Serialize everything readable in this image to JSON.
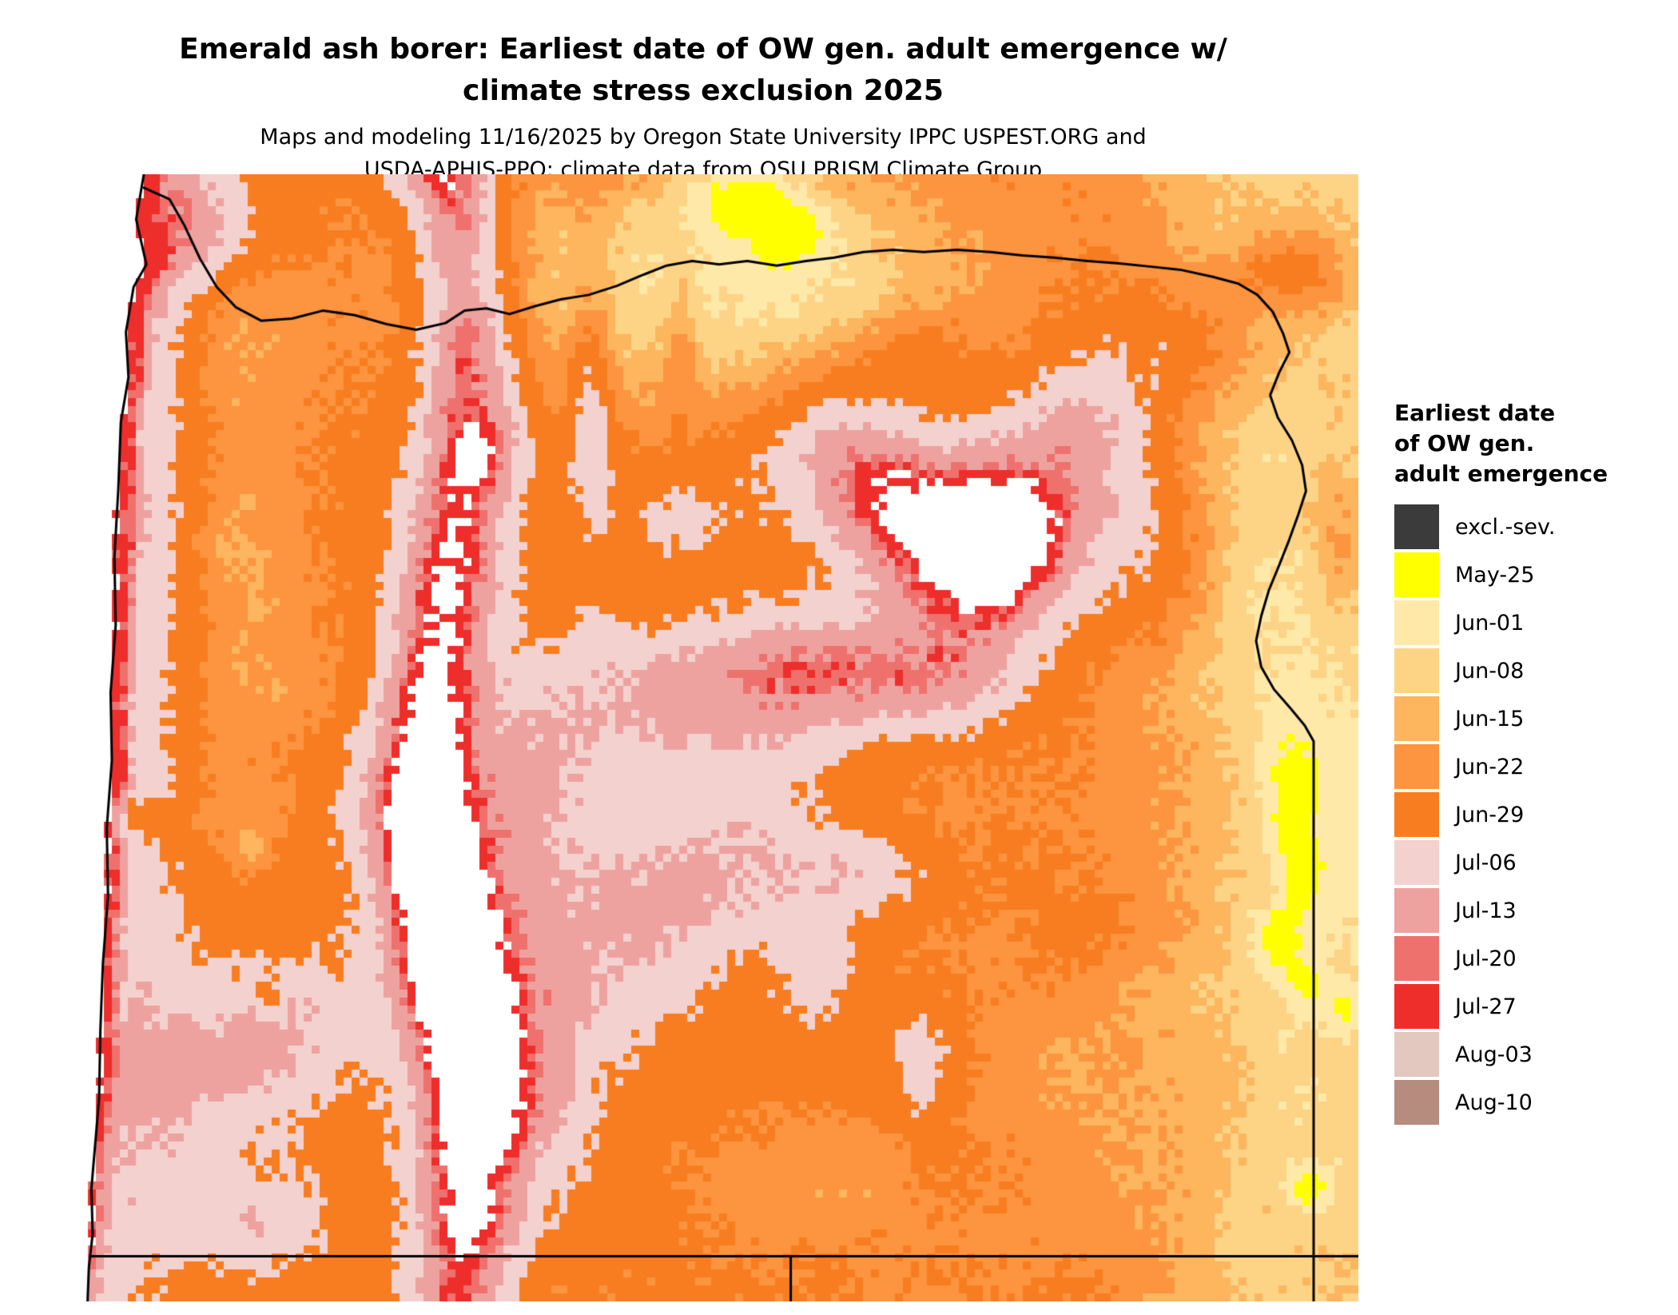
{
  "title": {
    "line1": "Emerald ash borer: Earliest date of OW gen. adult emergence w/",
    "line2": "climate stress exclusion 2025"
  },
  "subtitle": {
    "line1": "Maps and modeling 11/16/2025 by Oregon State University IPPC USPEST.ORG and",
    "line2": "USDA-APHIS-PPQ; climate data from OSU PRISM Climate Group"
  },
  "map": {
    "region": "Oregon",
    "na_color": "#ffffff",
    "border_color": "#000000",
    "ocean_color": "#ffffff"
  },
  "legend": {
    "title_lines": [
      "Earliest date",
      "of OW gen.",
      "adult emergence"
    ],
    "items": [
      {
        "label": "excl.-sev.",
        "color": "#3b3b3b"
      },
      {
        "label": "May-25",
        "color": "#ffff00"
      },
      {
        "label": "Jun-01",
        "color": "#fee9a9"
      },
      {
        "label": "Jun-08",
        "color": "#fdd486"
      },
      {
        "label": "Jun-15",
        "color": "#fdb55e"
      },
      {
        "label": "Jun-22",
        "color": "#fc9440"
      },
      {
        "label": "Jun-29",
        "color": "#f87d21"
      },
      {
        "label": "Jul-06",
        "color": "#f3d1ce"
      },
      {
        "label": "Jul-13",
        "color": "#eea2a0"
      },
      {
        "label": "Jul-20",
        "color": "#ef716e"
      },
      {
        "label": "Jul-27",
        "color": "#ee2e2b"
      },
      {
        "label": "Aug-03",
        "color": "#e2c8bf"
      },
      {
        "label": "Aug-10",
        "color": "#b58c7e"
      }
    ]
  }
}
